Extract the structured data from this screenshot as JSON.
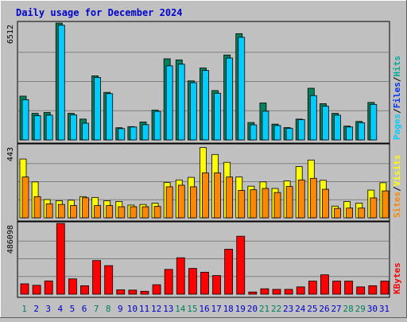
{
  "chart_data": [
    {
      "type": "bar",
      "title": "Daily usage for December 2024",
      "ymax_label": "6512",
      "legend": [
        "Pages",
        "Files",
        "Hits"
      ],
      "legend_colors": [
        "#00ccff",
        "#0033ff",
        "#00aa99"
      ],
      "categories": [
        "1",
        "2",
        "3",
        "4",
        "5",
        "6",
        "7",
        "8",
        "9",
        "10",
        "11",
        "12",
        "13",
        "14",
        "15",
        "16",
        "17",
        "18",
        "19",
        "20",
        "21",
        "22",
        "23",
        "24",
        "25",
        "26",
        "27",
        "28",
        "29",
        "30",
        "31"
      ],
      "series": [
        {
          "name": "Hits",
          "color": "#00805c",
          "values": [
            2440,
            1480,
            1530,
            6510,
            1480,
            1160,
            3570,
            2650,
            680,
            740,
            1000,
            1660,
            4520,
            4460,
            3290,
            4010,
            2750,
            4730,
            5920,
            970,
            2060,
            880,
            690,
            1160,
            2880,
            2020,
            1480,
            770,
            1030,
            2090,
            0
          ]
        },
        {
          "name": "Files",
          "color": "#0066ff",
          "values": [
            0,
            0,
            0,
            0,
            0,
            0,
            0,
            0,
            0,
            0,
            0,
            0,
            0,
            0,
            0,
            0,
            0,
            0,
            0,
            0,
            0,
            0,
            0,
            0,
            0,
            0,
            0,
            0,
            0,
            0,
            0
          ]
        },
        {
          "name": "Pages",
          "color": "#00ccff",
          "values": [
            2240,
            1350,
            1380,
            6390,
            1400,
            930,
            3480,
            2580,
            630,
            720,
            850,
            1590,
            4130,
            4220,
            3190,
            3870,
            2600,
            4560,
            5720,
            840,
            1600,
            800,
            650,
            1130,
            2470,
            1880,
            1380,
            720,
            960,
            1980,
            0
          ]
        }
      ],
      "ylim": [
        0,
        6512
      ]
    },
    {
      "type": "bar",
      "ymax_label": "443",
      "legend": [
        "Sites",
        "Visits"
      ],
      "legend_colors": [
        "#ff8800",
        "#ffff00"
      ],
      "categories": [
        "1",
        "2",
        "3",
        "4",
        "5",
        "6",
        "7",
        "8",
        "9",
        "10",
        "11",
        "12",
        "13",
        "14",
        "15",
        "16",
        "17",
        "18",
        "19",
        "20",
        "21",
        "22",
        "23",
        "24",
        "25",
        "26",
        "27",
        "28",
        "29",
        "30",
        "31"
      ],
      "series": [
        {
          "name": "Visits",
          "color": "#ffff00",
          "values": [
            360,
            220,
            112,
            105,
            108,
            130,
            125,
            105,
            100,
            78,
            82,
            90,
            216,
            232,
            248,
            430,
            388,
            340,
            250,
            194,
            220,
            180,
            226,
            314,
            354,
            230,
            72,
            100,
            90,
            170,
            215
          ]
        },
        {
          "name": "Sites",
          "color": "#ff8800",
          "values": [
            250,
            130,
            86,
            82,
            75,
            123,
            75,
            75,
            68,
            68,
            68,
            70,
            190,
            200,
            190,
            275,
            275,
            250,
            168,
            172,
            180,
            155,
            192,
            232,
            242,
            175,
            58,
            60,
            60,
            122,
            165
          ]
        }
      ],
      "ylim": [
        0,
        443
      ]
    },
    {
      "type": "bar",
      "ymax_label": "486098",
      "legend": [
        "KBytes"
      ],
      "legend_colors": [
        "#ff0000"
      ],
      "categories": [
        "1",
        "2",
        "3",
        "4",
        "5",
        "6",
        "7",
        "8",
        "9",
        "10",
        "11",
        "12",
        "13",
        "14",
        "15",
        "16",
        "17",
        "18",
        "19",
        "20",
        "21",
        "22",
        "23",
        "24",
        "25",
        "26",
        "27",
        "28",
        "29",
        "30",
        "31"
      ],
      "series": [
        {
          "name": "KBytes",
          "color": "#ff0000",
          "values": [
            71000,
            61000,
            91000,
            486098,
            105000,
            58000,
            231000,
            196000,
            30000,
            28000,
            20000,
            65000,
            170000,
            250000,
            177000,
            151000,
            128000,
            309000,
            398000,
            15000,
            37000,
            33000,
            33000,
            50000,
            90000,
            133000,
            90000,
            90000,
            50000,
            58000,
            90000
          ]
        }
      ],
      "ylim": [
        0,
        486098
      ]
    }
  ],
  "weekend_days": [
    "1",
    "7",
    "8",
    "14",
    "15",
    "21",
    "22",
    "28",
    "29"
  ]
}
